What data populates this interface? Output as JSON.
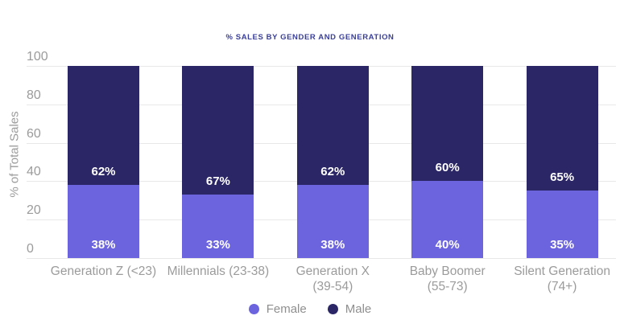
{
  "chart_data": {
    "type": "bar",
    "stacked": true,
    "title": "% SALES BY GENDER AND GENERATION",
    "xlabel": "",
    "ylabel": "% of Total Sales",
    "ylim": [
      0,
      100
    ],
    "yticks": [
      0,
      20,
      40,
      60,
      80,
      100
    ],
    "grid": true,
    "legend_position": "bottom",
    "categories": [
      "Generation Z (<23)",
      "Millennials (23-38)",
      "Generation X (39-54)",
      "Baby Boomer (55-73)",
      "Silent Generation (74+)"
    ],
    "category_label_lines": [
      [
        "Generation Z (<23)"
      ],
      [
        "Millennials (23-38)"
      ],
      [
        "Generation X",
        "(39-54)"
      ],
      [
        "Baby Boomer",
        "(55-73)"
      ],
      [
        "Silent Generation",
        "(74+)"
      ]
    ],
    "series": [
      {
        "name": "Female",
        "color": "#6C63DF",
        "values": [
          38,
          33,
          38,
          40,
          35
        ],
        "labels": [
          "38%",
          "33%",
          "38%",
          "40%",
          "35%"
        ]
      },
      {
        "name": "Male",
        "color": "#2B2666",
        "values": [
          62,
          67,
          62,
          60,
          65
        ],
        "labels": [
          "62%",
          "67%",
          "62%",
          "60%",
          "65%"
        ]
      }
    ],
    "colors": {
      "title": "#3A3F99",
      "grid": "#E8E8E8",
      "axis_text": "#9B9B9B",
      "bar_label": "#FFFFFF"
    }
  }
}
